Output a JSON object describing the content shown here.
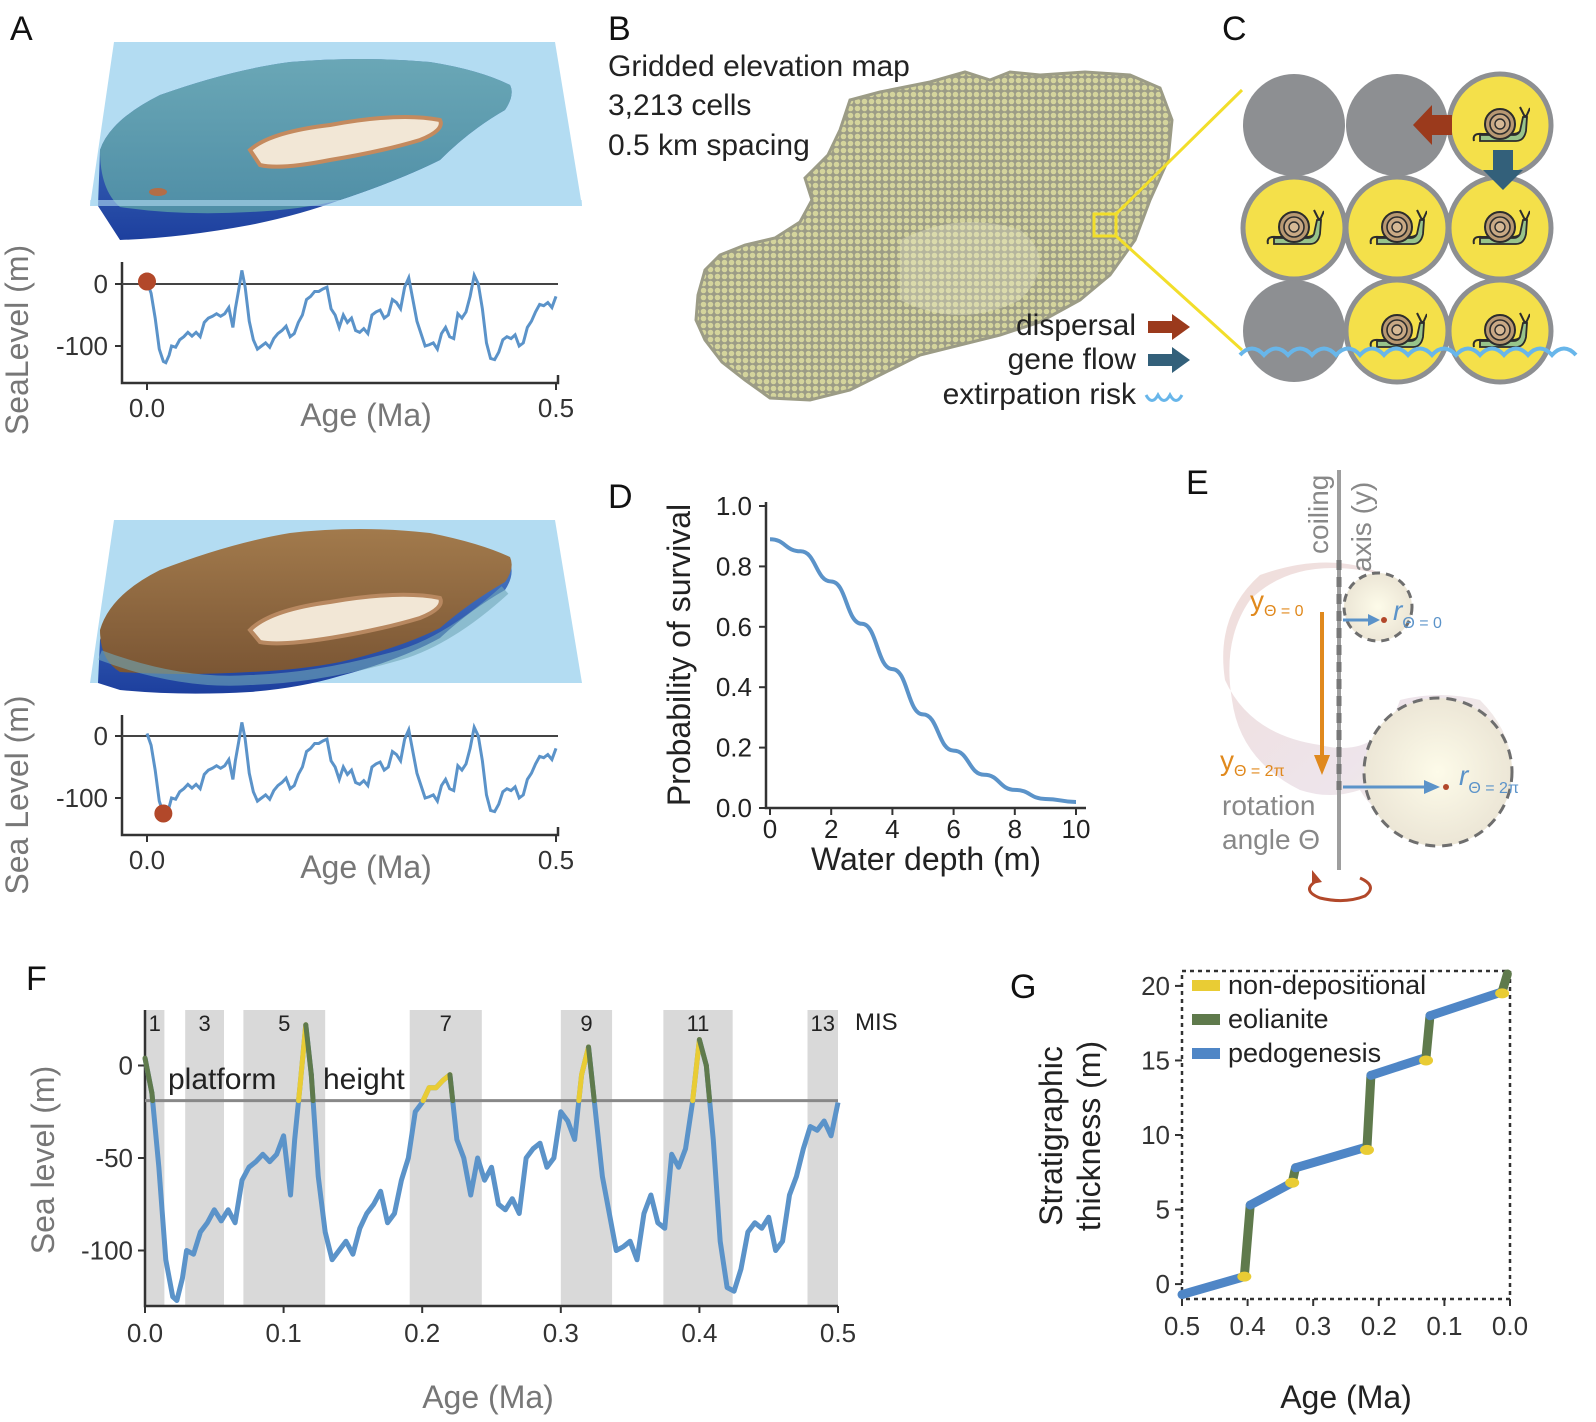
{
  "figure": {
    "panel_letters": {
      "a": "A",
      "b": "B",
      "c": "C",
      "d": "D",
      "e": "E",
      "f": "F",
      "g": "G"
    },
    "colors": {
      "sea_blue": "#5b93c9",
      "rust": "#b2482a",
      "dispersal": "#9b3a1c",
      "geneflow": "#33607a",
      "extirpation": "#68b6ea",
      "snail_cell": "#f4e04a",
      "empty_cell": "#8d8f92",
      "eolianite": "#5f7a4c",
      "nondepositional": "#e9cc34",
      "pedogenesis": "#4f86c6",
      "grid_fill": "#cfcf9a",
      "water_plane": "#b3dcf2"
    }
  },
  "panel_a": {
    "top": {
      "ylabel": "SeaLevel (m)",
      "xlabel": "Age (Ma)",
      "yticks": [
        "0",
        "-100"
      ],
      "xticks": [
        "0.0",
        "0.5"
      ],
      "marker_age_ma": 0.0
    },
    "bottom": {
      "ylabel": "Sea Level (m)",
      "xlabel": "Age (Ma)",
      "yticks": [
        "0",
        "-100"
      ],
      "xticks": [
        "0.0",
        "0.5"
      ],
      "marker_age_ma": 0.02
    }
  },
  "panel_b": {
    "title_lines": [
      "Gridded elevation map",
      "3,213 cells",
      "0.5 km spacing"
    ],
    "legend": [
      {
        "label": "dispersal",
        "icon": "brown-arrow-icon"
      },
      {
        "label": "gene flow",
        "icon": "teal-arrow-icon"
      },
      {
        "label": "extirpation risk",
        "icon": "wave-icon"
      }
    ]
  },
  "panel_c": {
    "grid": [
      [
        "empty",
        "empty",
        "snail"
      ],
      [
        "snail",
        "snail",
        "snail"
      ],
      [
        "empty",
        "snail",
        "snail"
      ]
    ]
  },
  "panel_d": {
    "chart_data": {
      "type": "line",
      "title": "",
      "xlabel": "Water depth (m)",
      "ylabel": "Probability of survival",
      "xlim": [
        0,
        10
      ],
      "ylim": [
        0,
        1
      ],
      "xticks": [
        "0",
        "2",
        "4",
        "6",
        "8",
        "10"
      ],
      "yticks": [
        "0.0",
        "0.2",
        "0.4",
        "0.6",
        "0.8",
        "1.0"
      ],
      "x": [
        0,
        1,
        2,
        3,
        4,
        5,
        6,
        7,
        8,
        9,
        10
      ],
      "y": [
        0.89,
        0.85,
        0.75,
        0.61,
        0.46,
        0.31,
        0.19,
        0.11,
        0.06,
        0.03,
        0.02
      ]
    }
  },
  "panel_e": {
    "axis_label_line1": "coiling",
    "axis_label_line2": "axis (y)",
    "y0_main": "y",
    "y0_sub": "Θ = 0",
    "y2_main": "y",
    "y2_sub": "Θ = 2π",
    "r0_main": "r",
    "r0_sub": "Θ = 0",
    "r2_main": "r",
    "r2_sub": "Θ = 2π",
    "rotation_line1": "rotation",
    "rotation_line2": "angle Θ"
  },
  "panel_f": {
    "chart_data": {
      "type": "line",
      "xlabel": "Age (Ma)",
      "ylabel": "Sea level (m)",
      "xlim": [
        0,
        0.5
      ],
      "ylim": [
        -130,
        30
      ],
      "xticks": [
        "0.0",
        "0.1",
        "0.2",
        "0.3",
        "0.4",
        "0.5"
      ],
      "yticks": [
        "0",
        "-50",
        "-100"
      ],
      "platform_height_m": -19,
      "platform_label_1": "platform",
      "platform_label_2": "height",
      "mis_label": "MIS",
      "mis_bands": [
        {
          "label": "1",
          "start": 0.0,
          "end": 0.014
        },
        {
          "label": "3",
          "start": 0.029,
          "end": 0.057
        },
        {
          "label": "5",
          "start": 0.071,
          "end": 0.13
        },
        {
          "label": "7",
          "start": 0.191,
          "end": 0.243
        },
        {
          "label": "9",
          "start": 0.3,
          "end": 0.337
        },
        {
          "label": "11",
          "start": 0.374,
          "end": 0.424
        },
        {
          "label": "13",
          "start": 0.478,
          "end": 0.5
        }
      ],
      "x": [
        0,
        0.005,
        0.01,
        0.015,
        0.02,
        0.023,
        0.027,
        0.03,
        0.035,
        0.04,
        0.045,
        0.05,
        0.055,
        0.06,
        0.065,
        0.07,
        0.075,
        0.08,
        0.085,
        0.09,
        0.095,
        0.1,
        0.105,
        0.108,
        0.112,
        0.116,
        0.12,
        0.125,
        0.13,
        0.135,
        0.14,
        0.145,
        0.15,
        0.155,
        0.16,
        0.165,
        0.17,
        0.175,
        0.18,
        0.185,
        0.19,
        0.195,
        0.2,
        0.205,
        0.21,
        0.215,
        0.22,
        0.225,
        0.23,
        0.235,
        0.24,
        0.245,
        0.25,
        0.255,
        0.26,
        0.265,
        0.27,
        0.275,
        0.28,
        0.285,
        0.29,
        0.295,
        0.3,
        0.305,
        0.31,
        0.315,
        0.32,
        0.325,
        0.33,
        0.335,
        0.34,
        0.345,
        0.35,
        0.355,
        0.36,
        0.365,
        0.37,
        0.375,
        0.38,
        0.385,
        0.39,
        0.395,
        0.4,
        0.405,
        0.41,
        0.415,
        0.42,
        0.425,
        0.43,
        0.435,
        0.44,
        0.445,
        0.45,
        0.455,
        0.46,
        0.465,
        0.47,
        0.475,
        0.48,
        0.485,
        0.49,
        0.495,
        0.5
      ],
      "y": [
        4,
        -15,
        -55,
        -105,
        -125,
        -127,
        -115,
        -100,
        -102,
        -90,
        -85,
        -78,
        -84,
        -78,
        -85,
        -62,
        -55,
        -52,
        -48,
        -52,
        -48,
        -38,
        -70,
        -40,
        -10,
        22,
        -5,
        -60,
        -90,
        -105,
        -100,
        -95,
        -102,
        -88,
        -80,
        -75,
        -68,
        -85,
        -80,
        -62,
        -50,
        -25,
        -20,
        -12,
        -12,
        -8,
        -5,
        -40,
        -50,
        -70,
        -50,
        -62,
        -55,
        -75,
        -78,
        -72,
        -80,
        -50,
        -45,
        -42,
        -55,
        -50,
        -25,
        -30,
        -40,
        -5,
        10,
        -25,
        -60,
        -80,
        -100,
        -98,
        -95,
        -105,
        -80,
        -70,
        -85,
        -88,
        -48,
        -55,
        -45,
        -20,
        14,
        0,
        -40,
        -95,
        -120,
        -122,
        -110,
        -90,
        -85,
        -88,
        -82,
        -100,
        -95,
        -70,
        -60,
        -45,
        -33,
        -35,
        -30,
        -38,
        -20
      ]
    }
  },
  "panel_g": {
    "chart_data": {
      "type": "line",
      "xlabel": "Age (Ma)",
      "ylabel_line1": "Stratigraphic",
      "ylabel_line2": "thickness (m)",
      "xlim": [
        0.5,
        0.0
      ],
      "ylim": [
        -1,
        21
      ],
      "xticks": [
        "0.5",
        "0.4",
        "0.3",
        "0.2",
        "0.1",
        "0.0"
      ],
      "yticks": [
        "0",
        "5",
        "10",
        "15",
        "20"
      ],
      "legend": [
        {
          "label": "non-depositional",
          "key": "nondepositional"
        },
        {
          "label": "eolianite",
          "key": "eolianite"
        },
        {
          "label": "pedogenesis",
          "key": "pedogenesis"
        }
      ],
      "segments": [
        {
          "kind": "pedogenesis",
          "points": [
            [
              0.5,
              -0.7
            ],
            [
              0.405,
              0.5
            ]
          ]
        },
        {
          "kind": "eolianite",
          "points": [
            [
              0.405,
              0.5
            ],
            [
              0.396,
              5.3
            ]
          ]
        },
        {
          "kind": "pedogenesis",
          "points": [
            [
              0.396,
              5.3
            ],
            [
              0.332,
              6.8
            ]
          ]
        },
        {
          "kind": "eolianite",
          "points": [
            [
              0.332,
              6.8
            ],
            [
              0.327,
              7.8
            ]
          ]
        },
        {
          "kind": "pedogenesis",
          "points": [
            [
              0.327,
              7.8
            ],
            [
              0.218,
              9.2
            ]
          ]
        },
        {
          "kind": "eolianite",
          "points": [
            [
              0.218,
              9.2
            ],
            [
              0.212,
              14.0
            ]
          ]
        },
        {
          "kind": "pedogenesis",
          "points": [
            [
              0.212,
              14.0
            ],
            [
              0.128,
              15.2
            ]
          ]
        },
        {
          "kind": "eolianite",
          "points": [
            [
              0.128,
              15.2
            ],
            [
              0.122,
              18.0
            ]
          ]
        },
        {
          "kind": "pedogenesis",
          "points": [
            [
              0.122,
              18.0
            ],
            [
              0.012,
              19.6
            ]
          ]
        },
        {
          "kind": "eolianite",
          "points": [
            [
              0.012,
              19.6
            ],
            [
              0.004,
              20.8
            ]
          ]
        }
      ],
      "nondepositional_points": [
        [
          0.405,
          0.5
        ],
        [
          0.332,
          6.8
        ],
        [
          0.218,
          9.0
        ],
        [
          0.128,
          15.0
        ],
        [
          0.012,
          19.5
        ]
      ]
    }
  }
}
